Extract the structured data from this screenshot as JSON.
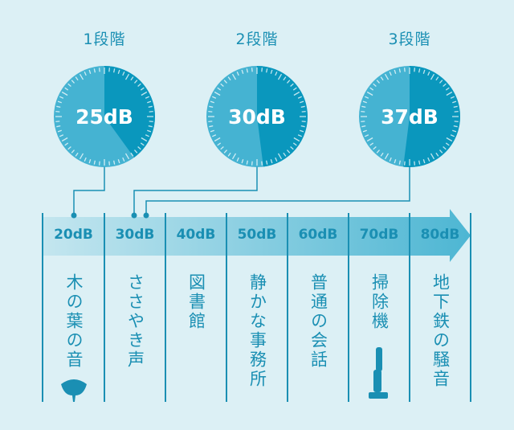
{
  "stages": [
    {
      "label": "1段階",
      "value": "25dB",
      "fill_fraction": 0.4
    },
    {
      "label": "2段階",
      "value": "30dB",
      "fill_fraction": 0.48
    },
    {
      "label": "3段階",
      "value": "37dB",
      "fill_fraction": 0.52
    }
  ],
  "scale": [
    {
      "db": "20dB",
      "example": "木の葉の音",
      "icon": "ginkgo-leaf-icon"
    },
    {
      "db": "30dB",
      "example": "ささやき声"
    },
    {
      "db": "40dB",
      "example": "図書館"
    },
    {
      "db": "50dB",
      "example": "静かな事務所"
    },
    {
      "db": "60dB",
      "example": "普通の会話"
    },
    {
      "db": "70dB",
      "example": "掃除機",
      "icon": "vacuum-cleaner-icon"
    },
    {
      "db": "80dB",
      "example": "地下鉄の騒音"
    }
  ],
  "colors": {
    "background": "#dcf0f5",
    "gauge_light": "#45b3d2",
    "gauge_dark": "#0a97bd",
    "accent": "#1a8fb3"
  }
}
